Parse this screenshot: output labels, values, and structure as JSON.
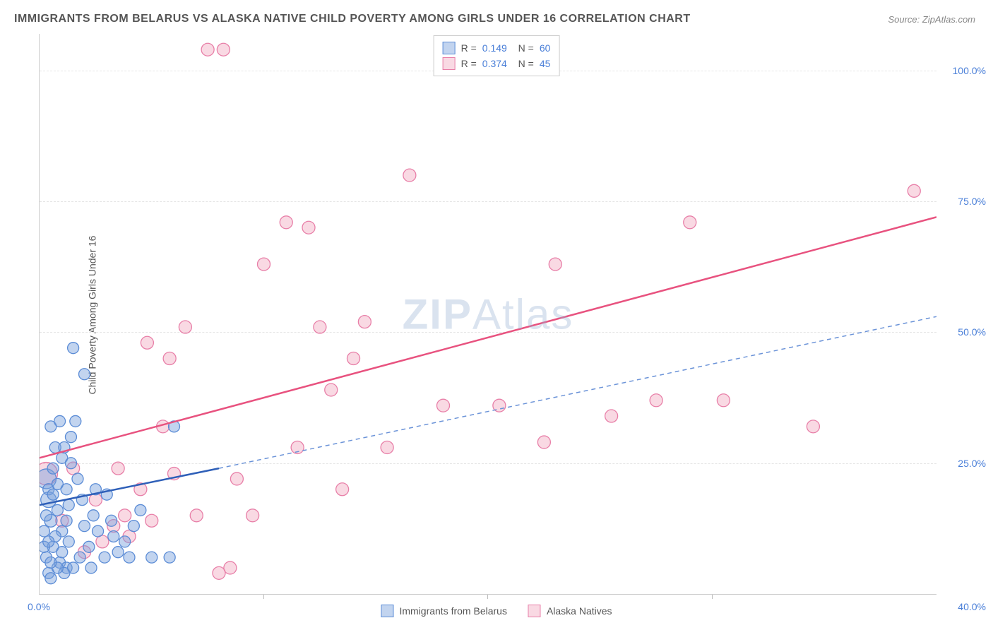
{
  "title": "IMMIGRANTS FROM BELARUS VS ALASKA NATIVE CHILD POVERTY AMONG GIRLS UNDER 16 CORRELATION CHART",
  "source": "Source: ZipAtlas.com",
  "ylabel": "Child Poverty Among Girls Under 16",
  "watermark_bold": "ZIP",
  "watermark_light": "Atlas",
  "chart": {
    "type": "scatter",
    "xlim": [
      0,
      40
    ],
    "ylim": [
      0,
      107
    ],
    "xtick_step": 10,
    "yticks": [
      25,
      50,
      75,
      100
    ],
    "ytick_labels": [
      "25.0%",
      "50.0%",
      "75.0%",
      "100.0%"
    ],
    "xtick_labels": [
      "0.0%",
      "",
      "",
      "",
      "40.0%"
    ],
    "xtick_positions": [
      0,
      10,
      20,
      30,
      40
    ],
    "grid_color": "#e5e5e5",
    "background_color": "#ffffff",
    "title_fontsize": 16,
    "label_fontsize": 14,
    "tick_color": "#4a7fd8",
    "series": [
      {
        "name": "Immigrants from Belarus",
        "color_fill": "rgba(120,160,220,0.45)",
        "color_stroke": "#5b8cd6",
        "trend_color": "#2e5fb8",
        "trend_dashed_color": "#6b93d8",
        "R": "0.149",
        "N": "60",
        "marker_radius": 8,
        "trend_solid": {
          "x1": 0,
          "y1": 17,
          "x2": 8,
          "y2": 24
        },
        "trend_dashed": {
          "x1": 8,
          "y1": 24,
          "x2": 40,
          "y2": 53
        },
        "points": [
          {
            "x": 0.3,
            "y": 22,
            "r": 14
          },
          {
            "x": 0.4,
            "y": 18,
            "r": 11
          },
          {
            "x": 0.5,
            "y": 14,
            "r": 9
          },
          {
            "x": 0.2,
            "y": 12,
            "r": 8
          },
          {
            "x": 0.6,
            "y": 9,
            "r": 8
          },
          {
            "x": 0.3,
            "y": 7,
            "r": 8
          },
          {
            "x": 0.9,
            "y": 6,
            "r": 8
          },
          {
            "x": 1.2,
            "y": 5,
            "r": 8
          },
          {
            "x": 0.4,
            "y": 4,
            "r": 8
          },
          {
            "x": 1.1,
            "y": 4,
            "r": 8
          },
          {
            "x": 1.5,
            "y": 5,
            "r": 8
          },
          {
            "x": 1.0,
            "y": 8,
            "r": 8
          },
          {
            "x": 1.3,
            "y": 10,
            "r": 8
          },
          {
            "x": 0.8,
            "y": 16,
            "r": 8
          },
          {
            "x": 1.2,
            "y": 20,
            "r": 8
          },
          {
            "x": 0.6,
            "y": 24,
            "r": 8
          },
          {
            "x": 1.0,
            "y": 26,
            "r": 8
          },
          {
            "x": 1.4,
            "y": 30,
            "r": 8
          },
          {
            "x": 0.5,
            "y": 32,
            "r": 8
          },
          {
            "x": 1.6,
            "y": 33,
            "r": 8
          },
          {
            "x": 0.7,
            "y": 28,
            "r": 8
          },
          {
            "x": 1.3,
            "y": 17,
            "r": 8
          },
          {
            "x": 2.0,
            "y": 13,
            "r": 8
          },
          {
            "x": 2.4,
            "y": 15,
            "r": 8
          },
          {
            "x": 1.5,
            "y": 47,
            "r": 8
          },
          {
            "x": 2.0,
            "y": 42,
            "r": 8
          },
          {
            "x": 2.6,
            "y": 12,
            "r": 8
          },
          {
            "x": 3.2,
            "y": 14,
            "r": 8
          },
          {
            "x": 3.5,
            "y": 8,
            "r": 8
          },
          {
            "x": 3.0,
            "y": 19,
            "r": 8
          },
          {
            "x": 1.0,
            "y": 12,
            "r": 8
          },
          {
            "x": 2.2,
            "y": 9,
            "r": 8
          },
          {
            "x": 0.8,
            "y": 5,
            "r": 8
          },
          {
            "x": 0.4,
            "y": 20,
            "r": 8
          },
          {
            "x": 1.7,
            "y": 22,
            "r": 8
          },
          {
            "x": 2.9,
            "y": 7,
            "r": 8
          },
          {
            "x": 3.8,
            "y": 10,
            "r": 8
          },
          {
            "x": 4.2,
            "y": 13,
            "r": 8
          },
          {
            "x": 4.5,
            "y": 16,
            "r": 8
          },
          {
            "x": 4.0,
            "y": 7,
            "r": 8
          },
          {
            "x": 5.0,
            "y": 7,
            "r": 8
          },
          {
            "x": 5.8,
            "y": 7,
            "r": 8
          },
          {
            "x": 6.0,
            "y": 32,
            "r": 8
          },
          {
            "x": 0.5,
            "y": 3,
            "r": 8
          },
          {
            "x": 1.8,
            "y": 7,
            "r": 8
          },
          {
            "x": 2.3,
            "y": 5,
            "r": 8
          },
          {
            "x": 0.9,
            "y": 33,
            "r": 8
          },
          {
            "x": 1.1,
            "y": 28,
            "r": 8
          },
          {
            "x": 0.3,
            "y": 15,
            "r": 8
          },
          {
            "x": 0.6,
            "y": 19,
            "r": 8
          },
          {
            "x": 1.4,
            "y": 25,
            "r": 8
          },
          {
            "x": 0.2,
            "y": 9,
            "r": 8
          },
          {
            "x": 0.7,
            "y": 11,
            "r": 8
          },
          {
            "x": 1.9,
            "y": 18,
            "r": 8
          },
          {
            "x": 2.5,
            "y": 20,
            "r": 8
          },
          {
            "x": 3.3,
            "y": 11,
            "r": 8
          },
          {
            "x": 0.5,
            "y": 6,
            "r": 8
          },
          {
            "x": 1.2,
            "y": 14,
            "r": 8
          },
          {
            "x": 0.4,
            "y": 10,
            "r": 8
          },
          {
            "x": 0.8,
            "y": 21,
            "r": 8
          }
        ]
      },
      {
        "name": "Alaska Natives",
        "color_fill": "rgba(240,160,185,0.40)",
        "color_stroke": "#e87fa8",
        "trend_color": "#e8527f",
        "R": "0.374",
        "N": "45",
        "marker_radius": 9,
        "trend_solid": {
          "x1": 0,
          "y1": 26,
          "x2": 40,
          "y2": 72
        },
        "points": [
          {
            "x": 0.3,
            "y": 23,
            "r": 16
          },
          {
            "x": 1.0,
            "y": 14,
            "r": 9
          },
          {
            "x": 2.0,
            "y": 8,
            "r": 9
          },
          {
            "x": 2.5,
            "y": 18,
            "r": 9
          },
          {
            "x": 3.3,
            "y": 13,
            "r": 9
          },
          {
            "x": 3.5,
            "y": 24,
            "r": 9
          },
          {
            "x": 4.0,
            "y": 11,
            "r": 9
          },
          {
            "x": 4.5,
            "y": 20,
            "r": 9
          },
          {
            "x": 4.8,
            "y": 48,
            "r": 9
          },
          {
            "x": 5.5,
            "y": 32,
            "r": 9
          },
          {
            "x": 5.8,
            "y": 45,
            "r": 9
          },
          {
            "x": 6.0,
            "y": 23,
            "r": 9
          },
          {
            "x": 6.5,
            "y": 51,
            "r": 9
          },
          {
            "x": 7.0,
            "y": 15,
            "r": 9
          },
          {
            "x": 7.5,
            "y": 104,
            "r": 9
          },
          {
            "x": 8.2,
            "y": 104,
            "r": 9
          },
          {
            "x": 8.5,
            "y": 5,
            "r": 9
          },
          {
            "x": 8.8,
            "y": 22,
            "r": 9
          },
          {
            "x": 9.5,
            "y": 15,
            "r": 9
          },
          {
            "x": 10.0,
            "y": 63,
            "r": 9
          },
          {
            "x": 11.0,
            "y": 71,
            "r": 9
          },
          {
            "x": 11.5,
            "y": 28,
            "r": 9
          },
          {
            "x": 12.0,
            "y": 70,
            "r": 9
          },
          {
            "x": 12.5,
            "y": 51,
            "r": 9
          },
          {
            "x": 13.0,
            "y": 39,
            "r": 9
          },
          {
            "x": 13.5,
            "y": 20,
            "r": 9
          },
          {
            "x": 14.0,
            "y": 45,
            "r": 9
          },
          {
            "x": 14.5,
            "y": 52,
            "r": 9
          },
          {
            "x": 15.5,
            "y": 28,
            "r": 9
          },
          {
            "x": 16.5,
            "y": 80,
            "r": 9
          },
          {
            "x": 18.0,
            "y": 36,
            "r": 9
          },
          {
            "x": 20.5,
            "y": 36,
            "r": 9
          },
          {
            "x": 22.5,
            "y": 29,
            "r": 9
          },
          {
            "x": 23.0,
            "y": 63,
            "r": 9
          },
          {
            "x": 25.5,
            "y": 34,
            "r": 9
          },
          {
            "x": 27.5,
            "y": 37,
            "r": 9
          },
          {
            "x": 29.0,
            "y": 71,
            "r": 9
          },
          {
            "x": 30.5,
            "y": 37,
            "r": 9
          },
          {
            "x": 34.5,
            "y": 32,
            "r": 9
          },
          {
            "x": 39.0,
            "y": 77,
            "r": 9
          },
          {
            "x": 1.5,
            "y": 24,
            "r": 9
          },
          {
            "x": 2.8,
            "y": 10,
            "r": 9
          },
          {
            "x": 3.8,
            "y": 15,
            "r": 9
          },
          {
            "x": 5.0,
            "y": 14,
            "r": 9
          },
          {
            "x": 8.0,
            "y": 4,
            "r": 9
          }
        ]
      }
    ]
  },
  "legend_bottom": {
    "series1": "Immigrants from Belarus",
    "series2": "Alaska Natives"
  }
}
